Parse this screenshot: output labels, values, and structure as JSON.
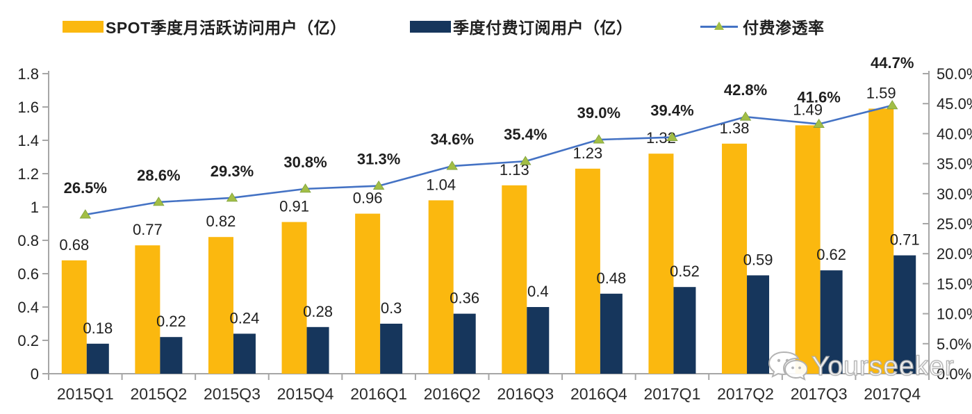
{
  "legend": {
    "mau_label": "SPOT季度月活跃访问用户（亿）",
    "subs_label": "季度付费订阅用户（亿）",
    "penetration_label": "付费渗透率"
  },
  "watermark": {
    "text": "Yourseeker",
    "icon": "wechat-icon"
  },
  "colors": {
    "mau_bar": "#FBB80F",
    "subs_bar": "#16365C",
    "penetration_line": "#4472C4",
    "penetration_marker": "#A2BE46",
    "axis": "#A6A6A6",
    "text": "#1F1F1F"
  },
  "chart_data": {
    "type": "bar",
    "subtype": "combo-bar-line-dual-axis",
    "title": "",
    "categories": [
      "2015Q1",
      "2015Q2",
      "2015Q3",
      "2015Q4",
      "2016Q1",
      "2016Q2",
      "2016Q3",
      "2016Q4",
      "2017Q1",
      "2017Q2",
      "2017Q3",
      "2017Q4"
    ],
    "series": [
      {
        "name": "SPOT季度月活跃访问用户（亿）",
        "type": "bar",
        "axis": "left",
        "color_key": "mau_bar",
        "values": [
          0.68,
          0.77,
          0.82,
          0.91,
          0.96,
          1.04,
          1.13,
          1.23,
          1.32,
          1.38,
          1.49,
          1.59
        ],
        "labels": [
          "0.68",
          "0.77",
          "0.82",
          "0.91",
          "0.96",
          "1.04",
          "1.13",
          "1.23",
          "1.32",
          "1.38",
          "1.49",
          "1.59"
        ]
      },
      {
        "name": "季度付费订阅用户（亿）",
        "type": "bar",
        "axis": "left",
        "color_key": "subs_bar",
        "values": [
          0.18,
          0.22,
          0.24,
          0.28,
          0.3,
          0.36,
          0.4,
          0.48,
          0.52,
          0.59,
          0.62,
          0.71
        ],
        "labels": [
          "0.18",
          "0.22",
          "0.24",
          "0.28",
          "0.3",
          "0.36",
          "0.4",
          "0.48",
          "0.52",
          "0.59",
          "0.62",
          "0.71"
        ]
      },
      {
        "name": "付费渗透率",
        "type": "line",
        "axis": "right",
        "color_key": "penetration_line",
        "marker_color_key": "penetration_marker",
        "values": [
          26.5,
          28.6,
          29.3,
          30.8,
          31.3,
          34.6,
          35.4,
          39.0,
          39.4,
          42.8,
          41.6,
          44.7
        ],
        "labels": [
          "26.5%",
          "28.6%",
          "29.3%",
          "30.8%",
          "31.3%",
          "34.6%",
          "35.4%",
          "39.0%",
          "39.4%",
          "42.8%",
          "41.6%",
          "44.7%"
        ]
      }
    ],
    "left_axis": {
      "min": 0,
      "max": 1.8,
      "tick_values": [
        1.8,
        1.6,
        1.4,
        1.2,
        1,
        0.8,
        0.6,
        0.4,
        0.2,
        0
      ],
      "tick_labels": [
        "1.8",
        "1.6",
        "1.4",
        "1.2",
        "1",
        "0.8",
        "0.6",
        "0.4",
        "0.2",
        "0"
      ]
    },
    "right_axis": {
      "min": 0,
      "max": 50,
      "tick_values": [
        50,
        45,
        40,
        35,
        30,
        25,
        20,
        15,
        10,
        5,
        0
      ],
      "tick_labels": [
        "50.0%",
        "45.0%",
        "40.0%",
        "35.0%",
        "30.0%",
        "25.0%",
        "20.0%",
        "15.0%",
        "10.0%",
        "5.0%",
        "0.0%"
      ]
    },
    "grid": false,
    "legend_position": "top"
  }
}
